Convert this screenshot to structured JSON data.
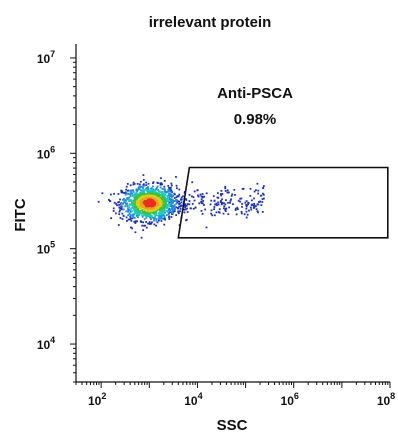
{
  "chart_data": {
    "type": "scatter",
    "title": "irrelevant protein",
    "xlabel": "SSC",
    "ylabel": "FITC",
    "x_scale": "log",
    "y_scale": "log",
    "xlim": [
      30,
      100000000
    ],
    "ylim": [
      4000,
      14000000
    ],
    "x_ticks": [
      {
        "value": 100,
        "base": "10",
        "exp": "2"
      },
      {
        "value": 10000,
        "base": "10",
        "exp": "4"
      },
      {
        "value": 1000000,
        "base": "10",
        "exp": "6"
      },
      {
        "value": 100000000,
        "base": "10",
        "exp": "8"
      }
    ],
    "y_ticks": [
      {
        "value": 10000,
        "base": "10",
        "exp": "4"
      },
      {
        "value": 100000,
        "base": "10",
        "exp": "5"
      },
      {
        "value": 1000000,
        "base": "10",
        "exp": "6"
      },
      {
        "value": 10000000,
        "base": "10",
        "exp": "7"
      }
    ],
    "gate": {
      "name": "Anti-PSCA",
      "percent": "0.98%",
      "vertices": [
        [
          6800,
          710000
        ],
        [
          90000000,
          710000
        ],
        [
          90000000,
          130000
        ],
        [
          4000,
          130000
        ]
      ]
    },
    "population": {
      "center": [
        1000,
        300000
      ],
      "x_log_spread": 0.28,
      "y_log_spread": 0.09,
      "tail_x_max": 250000
    },
    "colors": {
      "axis": "#111111",
      "gate": "#111111",
      "density": [
        "#1d2fb8",
        "#1e8fe0",
        "#1ec8c0",
        "#3fbf3f",
        "#d6d21a",
        "#f0a020",
        "#e83020"
      ]
    }
  }
}
